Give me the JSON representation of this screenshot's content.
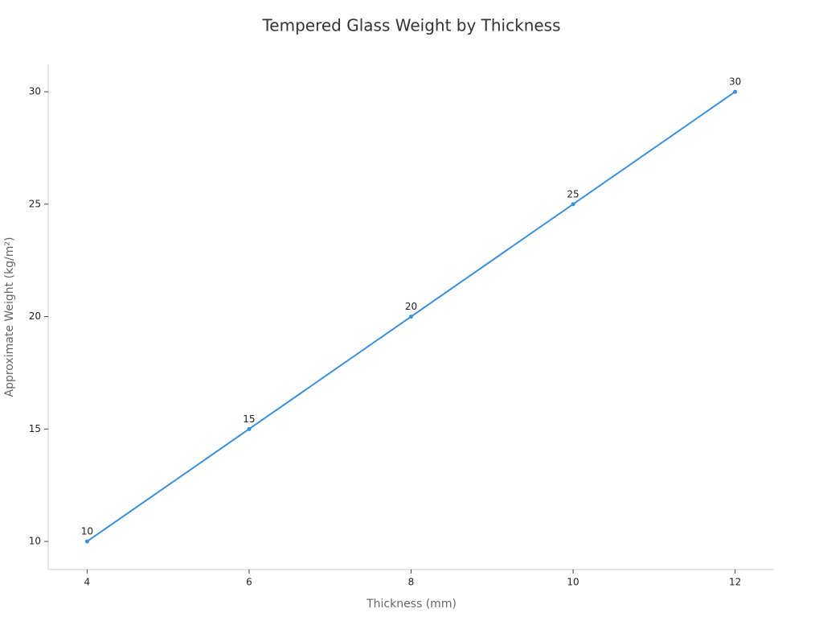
{
  "chart_data": {
    "type": "line",
    "title": "Tempered Glass Weight by Thickness",
    "x_label": "Thickness (mm)",
    "y_label": "Approximate Weight (kg/m²)",
    "x": [
      4,
      6,
      8,
      10,
      12
    ],
    "series": [
      {
        "name": "Approximate Weight",
        "color": "#3a8fdb",
        "values": [
          10,
          15,
          20,
          25,
          30
        ]
      }
    ],
    "xlim": [
      3.52,
      12.48
    ],
    "xticks": [
      4,
      6,
      8,
      10,
      12
    ],
    "ylim": [
      8.75,
      31.22
    ],
    "yticks": [
      10,
      15,
      20,
      25,
      30
    ],
    "grid": false,
    "legend": false
  }
}
